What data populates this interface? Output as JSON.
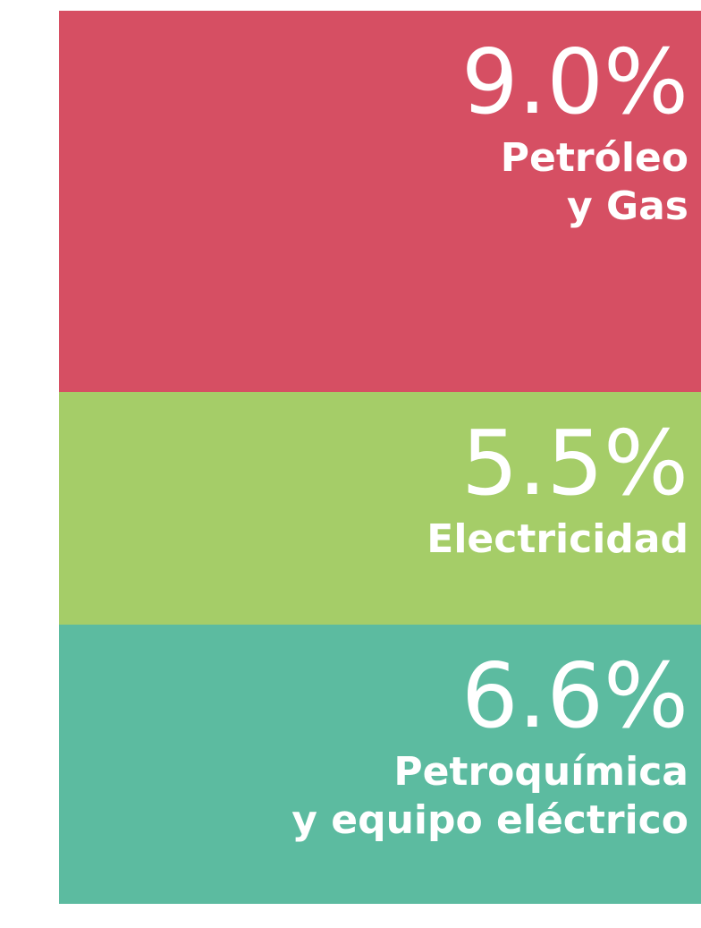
{
  "chart_data": {
    "type": "stacked-bar",
    "categories": [
      "Petróleo\ny Gas",
      "Electricidad",
      "Petroquímica\ny equipo eléctrico"
    ],
    "values": [
      9.0,
      5.5,
      6.6
    ],
    "value_labels": [
      "9.0%",
      "5.5%",
      "6.6%"
    ],
    "colors": [
      "#d64f63",
      "#a5cd68",
      "#5cbba0"
    ]
  }
}
